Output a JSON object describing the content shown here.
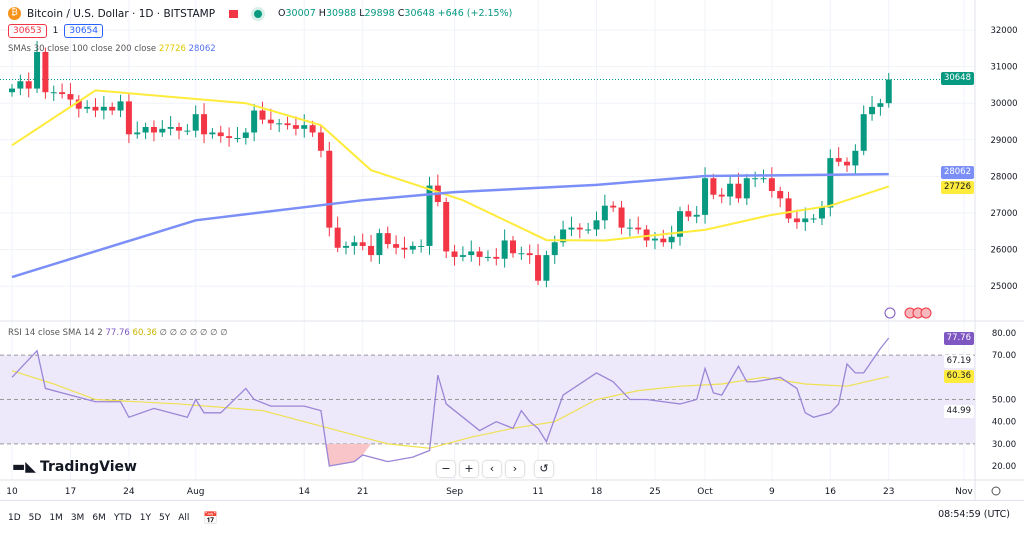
{
  "header": {
    "title": "Bitcoin / U.S. Dollar · 1D · BITSTAMP",
    "open_label": "O",
    "open": "30007",
    "high_label": "H",
    "high": "30988",
    "low_label": "L",
    "low": "29898",
    "close_label": "C",
    "close": "30648",
    "change": "+646 (+2.15%)",
    "bid": "30653",
    "spread": "1",
    "ask": "30654"
  },
  "sma_legend": {
    "label": "SMAs 30 close 100 close 200 close",
    "sma100": "27726",
    "sma200": "28062"
  },
  "rsi_legend": {
    "label": "RSI 14 close SMA 14 2",
    "rsi": "77.76",
    "sma": "60.36",
    "extra": "∅ ∅ ∅ ∅ ∅ ∅ ∅"
  },
  "price_tags": {
    "last": "30648",
    "sma200": "28062",
    "sma100": "27726",
    "rsi": "77.76",
    "rsi_sma": "60.36",
    "rsi_upper": "67.19",
    "rsi_lower": "44.99"
  },
  "colors": {
    "up": "#089981",
    "down": "#f23645",
    "sma100": "#ffeb3b",
    "sma200": "#7b8ff7",
    "rsi": "#9b86d6",
    "rsi_band": "#ede9fb"
  },
  "branding": "TradingView",
  "nav_buttons": [
    "−",
    "+",
    "‹",
    "›",
    "↺"
  ],
  "timeframes": [
    "1D",
    "5D",
    "1M",
    "3M",
    "6M",
    "YTD",
    "1Y",
    "5Y",
    "All"
  ],
  "clock": "08:54:59 (UTC)",
  "chart_data": {
    "type": "candlestick",
    "title": "Bitcoin / U.S. Dollar · 1D · BITSTAMP",
    "start_open": 30300,
    "closes": [
      30400,
      30600,
      30400,
      31400,
      30300,
      30300,
      30250,
      30100,
      29850,
      29900,
      29800,
      29900,
      29800,
      30050,
      29150,
      29200,
      29350,
      29200,
      29300,
      29350,
      29250,
      29250,
      29700,
      29150,
      29200,
      29100,
      29050,
      29050,
      29200,
      29800,
      29550,
      29450,
      29450,
      29400,
      29300,
      29400,
      29200,
      28700,
      26600,
      26050,
      26100,
      26200,
      26100,
      25850,
      26450,
      26150,
      26050,
      26000,
      26100,
      26100,
      27750,
      27300,
      25950,
      25800,
      25850,
      25950,
      25800,
      25800,
      25750,
      26250,
      25900,
      25900,
      25850,
      25150,
      25850,
      26200,
      26550,
      26600,
      26550,
      26550,
      26800,
      27200,
      27150,
      26600,
      26600,
      26550,
      26250,
      26300,
      26200,
      26350,
      27050,
      26900,
      26950,
      27950,
      27500,
      27450,
      27800,
      27400,
      27950,
      27950,
      27950,
      27600,
      27400,
      26850,
      26750,
      26850,
      26850,
      27150,
      28500,
      28400,
      28300,
      28700,
      29700,
      29900,
      30000,
      30648
    ],
    "sma100": [
      [
        0,
        28850
      ],
      [
        10,
        30350
      ],
      [
        28,
        30000
      ],
      [
        37,
        29400
      ],
      [
        43,
        28170
      ],
      [
        54,
        27350
      ],
      [
        64,
        26260
      ],
      [
        71,
        26250
      ],
      [
        83,
        26540
      ],
      [
        91,
        26950
      ],
      [
        98,
        27200
      ],
      [
        105,
        27726
      ]
    ],
    "sma200": [
      [
        0,
        25250
      ],
      [
        22,
        26800
      ],
      [
        42,
        27350
      ],
      [
        53,
        27570
      ],
      [
        70,
        27770
      ],
      [
        83,
        28010
      ],
      [
        105,
        28062
      ]
    ],
    "price_axis": {
      "ticks": [
        25000,
        26000,
        27000,
        28000,
        29000,
        30000,
        31000,
        32000
      ],
      "range": [
        24600,
        32000
      ]
    },
    "x_ticks": [
      [
        0,
        "10"
      ],
      [
        7,
        "17"
      ],
      [
        14,
        "24"
      ],
      [
        22,
        "Aug"
      ],
      [
        35,
        "14"
      ],
      [
        42,
        "21"
      ],
      [
        53,
        "Sep"
      ],
      [
        63,
        "11"
      ],
      [
        70,
        "18"
      ],
      [
        77,
        "25"
      ],
      [
        83,
        "Oct"
      ],
      [
        91,
        "9"
      ],
      [
        98,
        "16"
      ],
      [
        105,
        "23"
      ],
      [
        114,
        "Nov"
      ]
    ],
    "rsi": [
      [
        0,
        60
      ],
      [
        3,
        72
      ],
      [
        4,
        55
      ],
      [
        7,
        52
      ],
      [
        10,
        49
      ],
      [
        13,
        49
      ],
      [
        14,
        42
      ],
      [
        17,
        46
      ],
      [
        21,
        42
      ],
      [
        22,
        50
      ],
      [
        23,
        44
      ],
      [
        25,
        44
      ],
      [
        28,
        55
      ],
      [
        29,
        50
      ],
      [
        31,
        47
      ],
      [
        35,
        47
      ],
      [
        37,
        45
      ],
      [
        38,
        20
      ],
      [
        41,
        22
      ],
      [
        42,
        25
      ],
      [
        45,
        22
      ],
      [
        48,
        24
      ],
      [
        50,
        27
      ],
      [
        51,
        61
      ],
      [
        52,
        48
      ],
      [
        56,
        36
      ],
      [
        58,
        40
      ],
      [
        60,
        37
      ],
      [
        61,
        45
      ],
      [
        62,
        40
      ],
      [
        63,
        37
      ],
      [
        64,
        31
      ],
      [
        66,
        52
      ],
      [
        70,
        62
      ],
      [
        72,
        58
      ],
      [
        74,
        50
      ],
      [
        76,
        50
      ],
      [
        80,
        48
      ],
      [
        82,
        50
      ],
      [
        83,
        64
      ],
      [
        84,
        53
      ],
      [
        85,
        52
      ],
      [
        87,
        65
      ],
      [
        88,
        58
      ],
      [
        89,
        58
      ],
      [
        92,
        60
      ],
      [
        94,
        55
      ],
      [
        95,
        44
      ],
      [
        96,
        42
      ],
      [
        98,
        44
      ],
      [
        99,
        48
      ],
      [
        100,
        66
      ],
      [
        101,
        62
      ],
      [
        102,
        62
      ],
      [
        104,
        73
      ],
      [
        105,
        77.76
      ]
    ],
    "rsi_sma": [
      [
        0,
        63
      ],
      [
        5,
        57
      ],
      [
        10,
        50
      ],
      [
        20,
        48
      ],
      [
        30,
        45
      ],
      [
        38,
        37
      ],
      [
        45,
        30
      ],
      [
        50,
        28
      ],
      [
        55,
        33
      ],
      [
        60,
        37
      ],
      [
        65,
        40
      ],
      [
        70,
        50
      ],
      [
        75,
        54
      ],
      [
        80,
        56
      ],
      [
        85,
        57
      ],
      [
        90,
        60
      ],
      [
        95,
        57
      ],
      [
        100,
        56
      ],
      [
        105,
        60.36
      ]
    ],
    "rsi_axis": {
      "ticks": [
        20,
        30,
        40,
        50,
        70,
        80
      ],
      "bands": [
        30,
        50,
        70
      ],
      "range": [
        17,
        82
      ]
    }
  }
}
